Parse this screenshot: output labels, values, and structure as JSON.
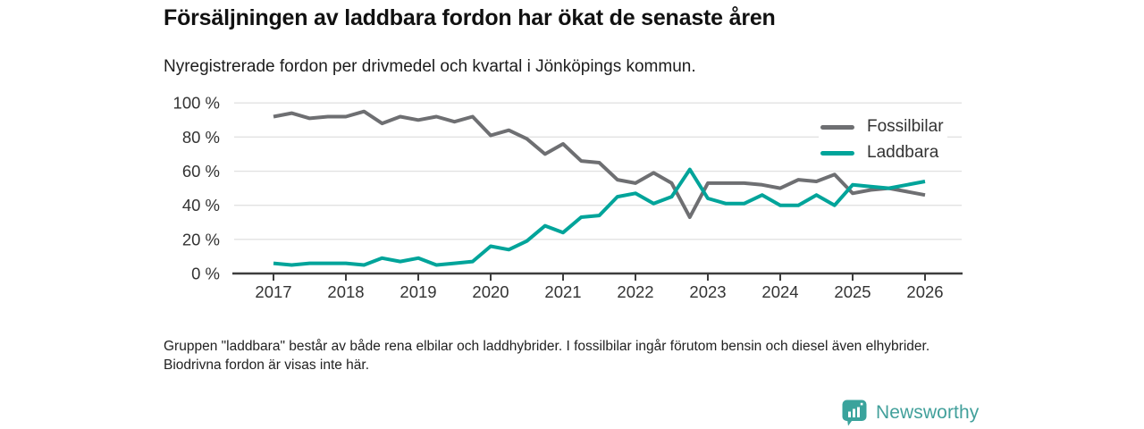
{
  "header": {
    "title": "Försäljningen av laddbara fordon har ökat de senaste åren",
    "subtitle": "Nyregistrerade fordon per drivmedel och kvartal i Jönköpings kommun."
  },
  "chart_data": {
    "type": "line",
    "x_start": "2017 Q1",
    "x_step": "quarter",
    "x_tick_labels": [
      "2017",
      "2018",
      "2019",
      "2020",
      "2021",
      "2022",
      "2023",
      "2024",
      "2025",
      "2026"
    ],
    "y_ticks": [
      {
        "value": 0,
        "label": "0 %"
      },
      {
        "value": 20,
        "label": "20 %"
      },
      {
        "value": 40,
        "label": "40 %"
      },
      {
        "value": 60,
        "label": "60 %"
      },
      {
        "value": 80,
        "label": "80 %"
      },
      {
        "value": 100,
        "label": "100 %"
      }
    ],
    "ylim": [
      0,
      100
    ],
    "grid": true,
    "grid_color": "#e2e2e2",
    "axis_color": "#3d3d3d",
    "legend_position": "top-right",
    "series": [
      {
        "name": "Fossilbilar",
        "color": "#6e6f72",
        "values": [
          92,
          94,
          91,
          92,
          92,
          95,
          88,
          92,
          90,
          92,
          89,
          92,
          81,
          84,
          79,
          70,
          76,
          66,
          65,
          55,
          53,
          59,
          53,
          33,
          53,
          53,
          53,
          52,
          50,
          55,
          54,
          58,
          47,
          49,
          50,
          48,
          46
        ]
      },
      {
        "name": "Laddbara",
        "color": "#00a49a",
        "values": [
          6,
          5,
          6,
          6,
          6,
          5,
          9,
          7,
          9,
          5,
          6,
          7,
          16,
          14,
          19,
          28,
          24,
          33,
          34,
          45,
          47,
          41,
          45,
          61,
          44,
          41,
          41,
          46,
          40,
          40,
          46,
          40,
          52,
          51,
          50,
          52,
          54
        ]
      }
    ]
  },
  "footnote": {
    "text": "Gruppen \"laddbara\" består av både rena elbilar och laddhybrider. I fossilbilar ingår förutom bensin och diesel även elhybrider. Biodrivna fordon är visas inte här."
  },
  "logo": {
    "text": "Newsworthy",
    "color": "#42a09b",
    "icon": "bar-chart-speech-bubble-icon"
  }
}
